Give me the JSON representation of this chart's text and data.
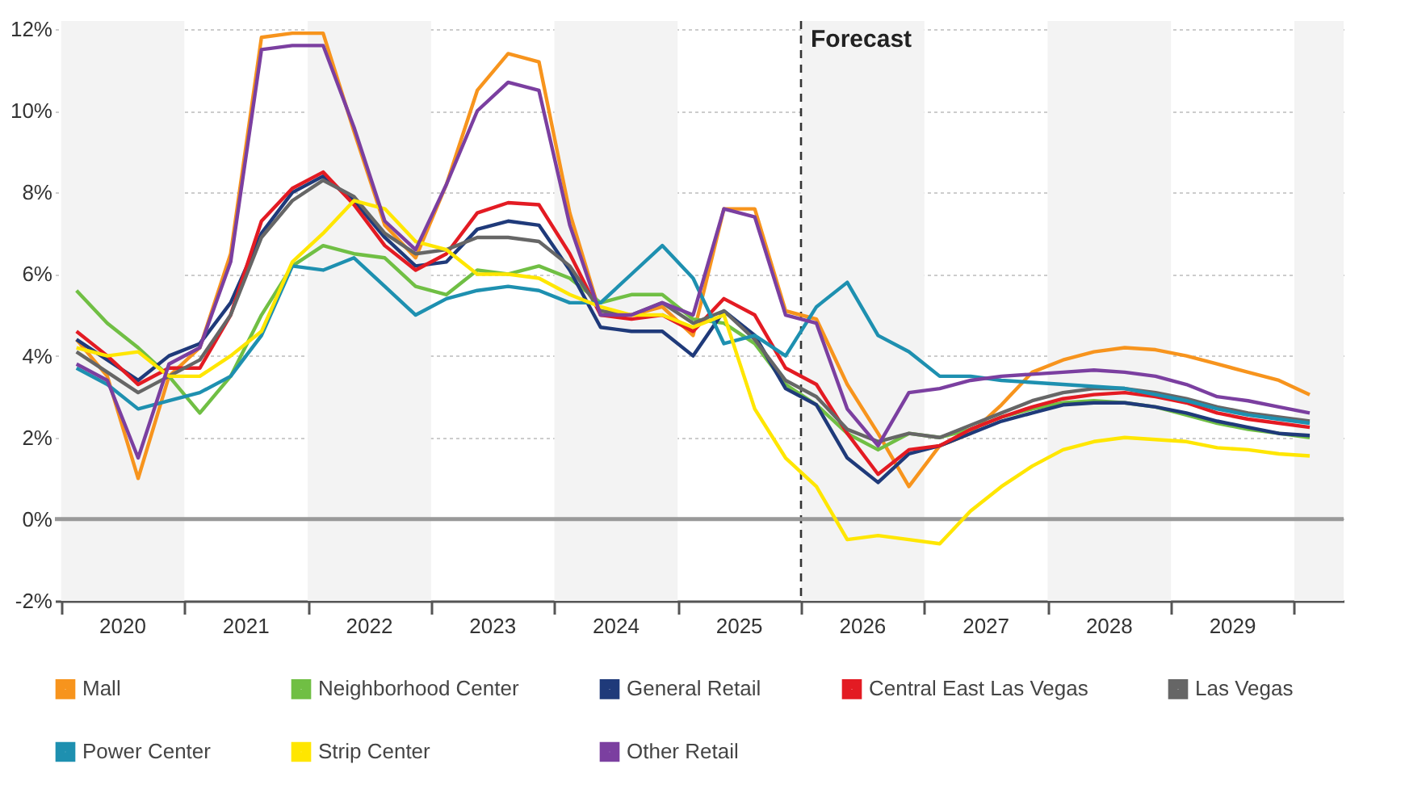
{
  "chart_data": {
    "type": "line",
    "x": [
      2020.125,
      2020.375,
      2020.625,
      2020.875,
      2021.125,
      2021.375,
      2021.625,
      2021.875,
      2022.125,
      2022.375,
      2022.625,
      2022.875,
      2023.125,
      2023.375,
      2023.625,
      2023.875,
      2024.125,
      2024.375,
      2024.625,
      2024.875,
      2025.125,
      2025.375,
      2025.625,
      2025.875,
      2026.125,
      2026.375,
      2026.625,
      2026.875,
      2027.125,
      2027.375,
      2027.625,
      2027.875,
      2028.125,
      2028.375,
      2028.625,
      2028.875,
      2029.125,
      2029.375,
      2029.625,
      2029.875,
      2030.125
    ],
    "series": [
      {
        "name": "Mall",
        "color": "#f7941d",
        "values": [
          4.4,
          3.5,
          1.0,
          3.5,
          4.2,
          6.5,
          11.8,
          11.9,
          11.9,
          9.5,
          7.2,
          6.4,
          8.2,
          10.5,
          11.4,
          11.2,
          7.5,
          5.0,
          5.0,
          5.2,
          4.5,
          7.6,
          7.6,
          5.1,
          4.9,
          3.3,
          2.1,
          0.8,
          1.8,
          2.1,
          2.8,
          3.6,
          3.9,
          4.1,
          4.2,
          4.15,
          4.0,
          3.8,
          3.6,
          3.4,
          3.05
        ]
      },
      {
        "name": "Neighborhood Center",
        "color": "#70bf44",
        "values": [
          5.6,
          4.8,
          4.2,
          3.5,
          2.6,
          3.5,
          5.0,
          6.2,
          6.7,
          6.5,
          6.4,
          5.7,
          5.5,
          6.1,
          6.0,
          6.2,
          5.9,
          5.3,
          5.5,
          5.5,
          4.9,
          4.8,
          4.3,
          3.3,
          2.8,
          2.1,
          1.7,
          2.1,
          2.0,
          2.2,
          2.5,
          2.7,
          2.85,
          2.9,
          2.85,
          2.75,
          2.55,
          2.35,
          2.2,
          2.1,
          2.0
        ]
      },
      {
        "name": "General Retail",
        "color": "#1f3a7a",
        "values": [
          4.4,
          3.9,
          3.4,
          4.0,
          4.3,
          5.3,
          7.0,
          8.0,
          8.4,
          7.8,
          6.9,
          6.2,
          6.3,
          7.1,
          7.3,
          7.2,
          6.1,
          4.7,
          4.6,
          4.6,
          4.0,
          5.1,
          4.5,
          3.2,
          2.8,
          1.5,
          0.9,
          1.6,
          1.8,
          2.1,
          2.4,
          2.6,
          2.8,
          2.85,
          2.85,
          2.75,
          2.6,
          2.4,
          2.25,
          2.1,
          2.05
        ]
      },
      {
        "name": "Central East Las Vegas",
        "color": "#e31b23",
        "values": [
          4.6,
          4.0,
          3.3,
          3.7,
          3.7,
          5.0,
          7.3,
          8.1,
          8.5,
          7.7,
          6.7,
          6.1,
          6.5,
          7.5,
          7.75,
          7.7,
          6.5,
          5.0,
          4.9,
          5.0,
          4.6,
          5.4,
          5.0,
          3.7,
          3.3,
          2.1,
          1.1,
          1.7,
          1.8,
          2.2,
          2.5,
          2.75,
          2.95,
          3.05,
          3.1,
          3.0,
          2.85,
          2.6,
          2.45,
          2.35,
          2.25
        ]
      },
      {
        "name": "Las Vegas",
        "color": "#666666",
        "values": [
          4.1,
          3.6,
          3.1,
          3.5,
          3.9,
          5.0,
          6.9,
          7.8,
          8.3,
          7.9,
          7.0,
          6.5,
          6.6,
          6.9,
          6.9,
          6.8,
          6.2,
          5.1,
          5.0,
          5.3,
          4.8,
          5.1,
          4.4,
          3.4,
          3.0,
          2.2,
          1.9,
          2.1,
          2.0,
          2.3,
          2.6,
          2.9,
          3.1,
          3.2,
          3.2,
          3.1,
          2.95,
          2.75,
          2.6,
          2.5,
          2.4
        ]
      },
      {
        "name": "Power Center",
        "color": "#1e90b0",
        "values": [
          3.7,
          3.3,
          2.7,
          2.9,
          3.1,
          3.5,
          4.5,
          6.2,
          6.1,
          6.4,
          5.7,
          5.0,
          5.4,
          5.6,
          5.7,
          5.6,
          5.3,
          5.3,
          6.0,
          6.7,
          5.9,
          4.3,
          4.5,
          4.0,
          5.2,
          5.8,
          4.5,
          4.1,
          3.5,
          3.5,
          3.4,
          3.35,
          3.3,
          3.25,
          3.2,
          3.05,
          2.9,
          2.7,
          2.55,
          2.45,
          2.35
        ]
      },
      {
        "name": "Strip Center",
        "color": "#ffe600",
        "values": [
          4.2,
          4.0,
          4.1,
          3.5,
          3.5,
          4.0,
          4.6,
          6.3,
          7.0,
          7.8,
          7.6,
          6.8,
          6.6,
          6.0,
          6.0,
          5.9,
          5.5,
          5.2,
          5.0,
          5.0,
          4.7,
          5.0,
          2.7,
          1.5,
          0.8,
          -0.5,
          -0.4,
          -0.5,
          -0.6,
          0.2,
          0.8,
          1.3,
          1.7,
          1.9,
          2.0,
          1.95,
          1.9,
          1.75,
          1.7,
          1.6,
          1.55
        ]
      },
      {
        "name": "Other Retail",
        "color": "#7b3fa0",
        "values": [
          3.8,
          3.4,
          1.5,
          3.8,
          4.2,
          6.3,
          11.5,
          11.6,
          11.6,
          9.6,
          7.3,
          6.6,
          8.2,
          10.0,
          10.7,
          10.5,
          7.2,
          5.0,
          5.0,
          5.3,
          5.0,
          7.6,
          7.4,
          5.0,
          4.8,
          2.7,
          1.8,
          3.1,
          3.2,
          3.4,
          3.5,
          3.55,
          3.6,
          3.65,
          3.6,
          3.5,
          3.3,
          3.0,
          2.9,
          2.75,
          2.6
        ]
      }
    ],
    "xlim": [
      2019.95,
      2030.4
    ],
    "xticks": [
      {
        "value": 2020,
        "label": null
      },
      {
        "value": 2020.5,
        "label": "2020"
      },
      {
        "value": 2021,
        "label": null
      },
      {
        "value": 2021.5,
        "label": "2021"
      },
      {
        "value": 2022,
        "label": null
      },
      {
        "value": 2022.5,
        "label": "2022"
      },
      {
        "value": 2023,
        "label": null
      },
      {
        "value": 2023.5,
        "label": "2023"
      },
      {
        "value": 2024,
        "label": null
      },
      {
        "value": 2024.5,
        "label": "2024"
      },
      {
        "value": 2025,
        "label": null
      },
      {
        "value": 2025.5,
        "label": "2025"
      },
      {
        "value": 2026,
        "label": null
      },
      {
        "value": 2026.5,
        "label": "2026"
      },
      {
        "value": 2027,
        "label": null
      },
      {
        "value": 2027.5,
        "label": "2027"
      },
      {
        "value": 2028,
        "label": null
      },
      {
        "value": 2028.5,
        "label": "2028"
      },
      {
        "value": 2029,
        "label": null
      },
      {
        "value": 2029.5,
        "label": "2029"
      },
      {
        "value": 2030,
        "label": null
      }
    ],
    "ylim": [
      -2,
      12.2
    ],
    "yticks": [
      {
        "value": -2,
        "label": "-2%"
      },
      {
        "value": 0,
        "label": "0%"
      },
      {
        "value": 2,
        "label": "2%"
      },
      {
        "value": 4,
        "label": "4%"
      },
      {
        "value": 6,
        "label": "6%"
      },
      {
        "value": 8,
        "label": "8%"
      },
      {
        "value": 10,
        "label": "10%"
      },
      {
        "value": 12,
        "label": "12%"
      }
    ],
    "bands": [
      {
        "axis": "x",
        "from": 2020,
        "to": 2021,
        "color": "#f3f3f3"
      },
      {
        "axis": "x",
        "from": 2022,
        "to": 2023,
        "color": "#f3f3f3"
      },
      {
        "axis": "x",
        "from": 2024,
        "to": 2025,
        "color": "#f3f3f3"
      },
      {
        "axis": "x",
        "from": 2026,
        "to": 2027,
        "color": "#f3f3f3"
      },
      {
        "axis": "x",
        "from": 2028,
        "to": 2029,
        "color": "#f3f3f3"
      },
      {
        "axis": "x",
        "from": 2030,
        "to": 2030.4,
        "color": "#f3f3f3"
      }
    ],
    "ref_lines": [
      {
        "axis": "x",
        "value": 2026,
        "label": "Forecast",
        "color": "#333333",
        "line_style": "dashed"
      },
      {
        "axis": "y",
        "value": 0,
        "label": null,
        "color": "#999999",
        "line_style": "solid"
      }
    ],
    "grid": "y",
    "legend": "bottom",
    "line_style": "solid",
    "marker": "none"
  }
}
